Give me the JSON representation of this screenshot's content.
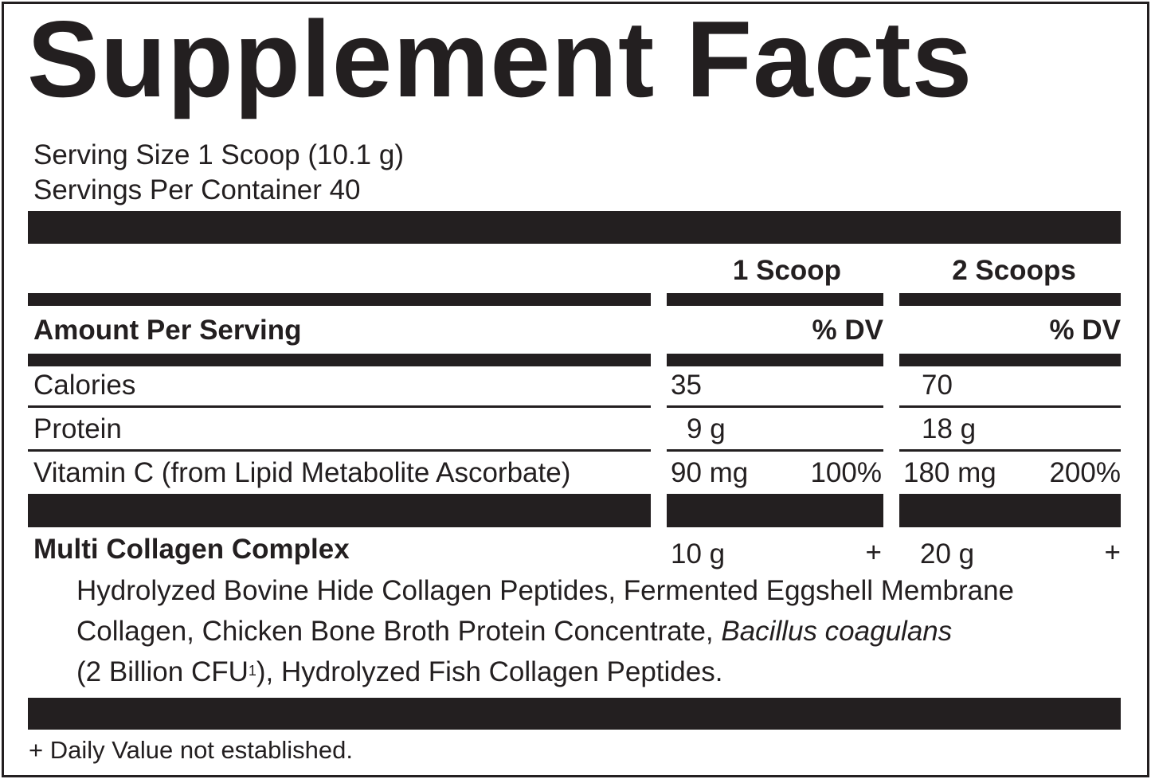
{
  "title": "Supplement Facts",
  "serving_size": "Serving Size 1 Scoop (10.1 g)",
  "servings_per_container": "Servings Per Container 40",
  "columns": {
    "col1": "1 Scoop",
    "col2": "2 Scoops"
  },
  "amount_per_serving": "Amount Per Serving",
  "dv_label": "% DV",
  "rows": [
    {
      "name": "Calories",
      "col1_amount": "35",
      "col1_dv": "",
      "col2_amount": "70",
      "col2_dv": ""
    },
    {
      "name": "Protein",
      "col1_amount": "9 g",
      "col1_dv": "",
      "col2_amount": "18 g",
      "col2_dv": ""
    },
    {
      "name": "Vitamin C (from Lipid Metabolite Ascorbate)",
      "col1_amount": "90 mg",
      "col1_dv": "100%",
      "col2_amount": "180 mg",
      "col2_dv": "200%"
    }
  ],
  "blend": {
    "name": "Multi Collagen Complex",
    "col1_amount": "10 g",
    "col1_dv": "+",
    "col2_amount": "20 g",
    "col2_dv": "+",
    "line1": "Hydrolyzed Bovine Hide Collagen Peptides, Fermented Eggshell Membrane",
    "line2_a": "Collagen, Chicken Bone Broth Protein Concentrate, ",
    "line2_italic": "Bacillus coagulans",
    "line3_a": "(2 Billion CFU",
    "line3_sup": "1",
    "line3_b": "), Hydrolyzed Fish Collagen Peptides."
  },
  "footnote": "+ Daily Value not established."
}
